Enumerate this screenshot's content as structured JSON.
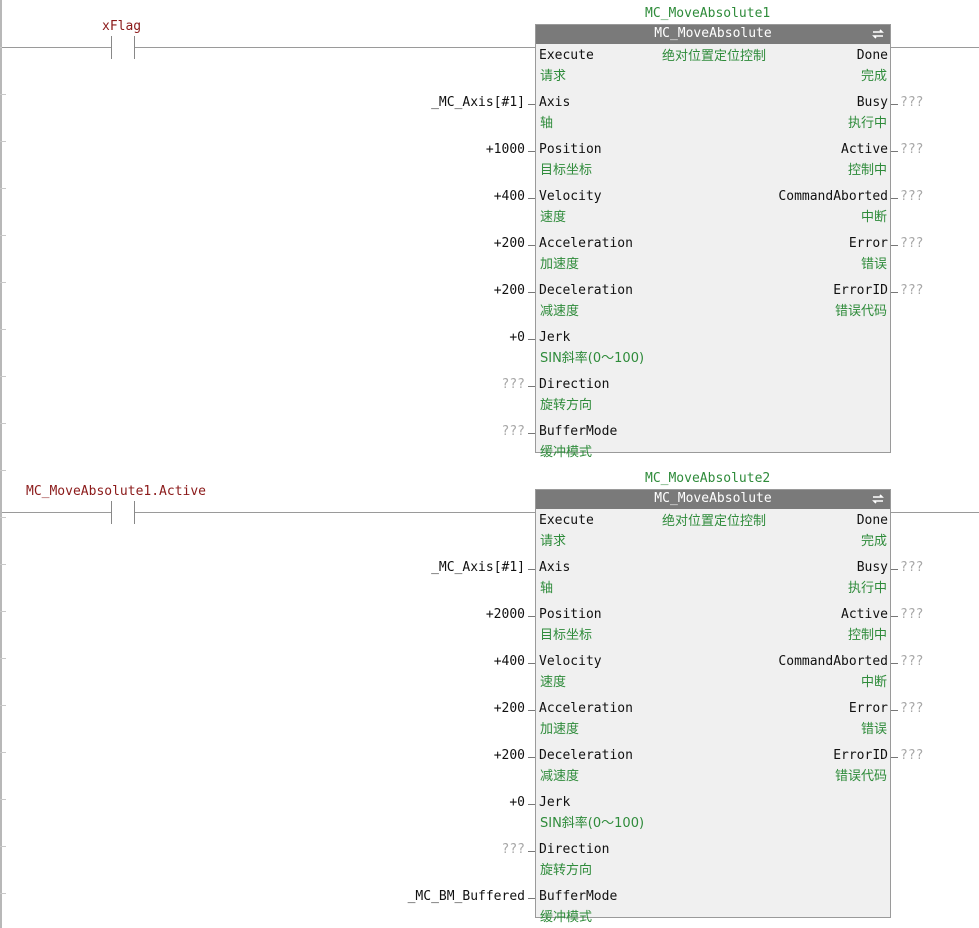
{
  "rungs": [
    {
      "contact_var": "xFlag",
      "instance": "MC_MoveAbsolute1",
      "fb_type": "MC_MoveAbsolute",
      "fb_desc": "绝对位置定位控制",
      "inputs": [
        {
          "name": "Execute",
          "sub": "请求",
          "value": ""
        },
        {
          "name": "Axis",
          "sub": "轴",
          "value": "_MC_Axis[#1]"
        },
        {
          "name": "Position",
          "sub": "目标坐标",
          "value": "+1000"
        },
        {
          "name": "Velocity",
          "sub": "速度",
          "value": "+400"
        },
        {
          "name": "Acceleration",
          "sub": "加速度",
          "value": "+200"
        },
        {
          "name": "Deceleration",
          "sub": "减速度",
          "value": "+200"
        },
        {
          "name": "Jerk",
          "sub": "SIN斜率(0～100)",
          "value": "+0"
        },
        {
          "name": "Direction",
          "sub": "旋转方向",
          "value": "???"
        },
        {
          "name": "BufferMode",
          "sub": "缓冲模式",
          "value": "???"
        }
      ],
      "outputs": [
        {
          "name": "Done",
          "sub": "完成",
          "value": ""
        },
        {
          "name": "Busy",
          "sub": "执行中",
          "value": "???"
        },
        {
          "name": "Active",
          "sub": "控制中",
          "value": "???"
        },
        {
          "name": "CommandAborted",
          "sub": "中断",
          "value": "???"
        },
        {
          "name": "Error",
          "sub": "错误",
          "value": "???"
        },
        {
          "name": "ErrorID",
          "sub": "错误代码",
          "value": "???"
        }
      ]
    },
    {
      "contact_var": "MC_MoveAbsolute1.Active",
      "instance": "MC_MoveAbsolute2",
      "fb_type": "MC_MoveAbsolute",
      "fb_desc": "绝对位置定位控制",
      "inputs": [
        {
          "name": "Execute",
          "sub": "请求",
          "value": ""
        },
        {
          "name": "Axis",
          "sub": "轴",
          "value": "_MC_Axis[#1]"
        },
        {
          "name": "Position",
          "sub": "目标坐标",
          "value": "+2000"
        },
        {
          "name": "Velocity",
          "sub": "速度",
          "value": "+400"
        },
        {
          "name": "Acceleration",
          "sub": "加速度",
          "value": "+200"
        },
        {
          "name": "Deceleration",
          "sub": "减速度",
          "value": "+200"
        },
        {
          "name": "Jerk",
          "sub": "SIN斜率(0～100)",
          "value": "+0"
        },
        {
          "name": "Direction",
          "sub": "旋转方向",
          "value": "???"
        },
        {
          "name": "BufferMode",
          "sub": "缓冲模式",
          "value": "_MC_BM_Buffered"
        }
      ],
      "outputs": [
        {
          "name": "Done",
          "sub": "完成",
          "value": ""
        },
        {
          "name": "Busy",
          "sub": "执行中",
          "value": "???"
        },
        {
          "name": "Active",
          "sub": "控制中",
          "value": "???"
        },
        {
          "name": "CommandAborted",
          "sub": "中断",
          "value": "???"
        },
        {
          "name": "Error",
          "sub": "错误",
          "value": "???"
        },
        {
          "name": "ErrorID",
          "sub": "错误代码",
          "value": "???"
        }
      ]
    }
  ],
  "colors": {
    "variable": "#8b1a1a",
    "comment": "#2e8b3a",
    "fb_header": "#7a7a7a",
    "fb_body": "#f0f0f0",
    "unassigned": "#a8a8a8"
  },
  "icons": {
    "fb_header": "refresh-icon"
  }
}
